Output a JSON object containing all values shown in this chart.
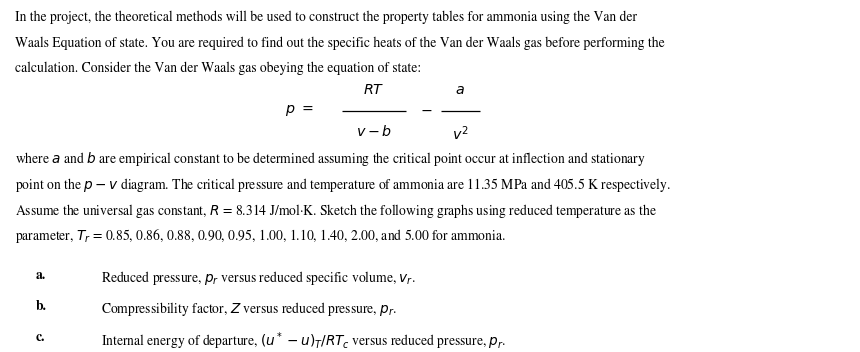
{
  "bg_color": "#ffffff",
  "text_color": "#000000",
  "font_size_body": 9.8,
  "fig_width": 8.6,
  "fig_height": 3.52,
  "paragraph1": "In the project, the theoretical methods will be used to construct the property tables for ammonia using the Van der\nWaals Equation of state. You are required to find out the specific heats of the Van der Waals gas before performing the\ncalculation. Consider the Van der Waals gas obeying the equation of state:",
  "paragraph2": "where $a$ and $b$ are empirical constant to be determined assuming the critical point occur at inflection and stationary\npoint on the $p - v$ diagram. The critical pressure and temperature of ammonia are 11.35 MPa and 405.5 K respectively.\nAssume the universal gas constant, $R$ = 8.314 J/mol·K. Sketch the following graphs using reduced temperature as the\nparameter, $T_r$ = 0.85, 0.86, 0.88, 0.90, 0.95, 1.00, 1.10, 1.40, 2.00, and 5.00 for ammonia.",
  "item_a_label": "a.",
  "item_a_text": "Reduced pressure, $p_r$ versus reduced specific volume, $v_r$.",
  "item_b_label": "b.",
  "item_b_text": "Compressibility factor, $Z$ versus reduced pressure, $p_r$.",
  "item_c_label": "c.",
  "item_c_text": "Internal energy of departure, $(u^* - u)_T/RT_c$ versus reduced pressure, $p_r$.",
  "eq_p": "$p\\ =\\ $",
  "eq_RT": "$RT$",
  "eq_vb": "$v - b$",
  "eq_a": "$a$",
  "eq_v2": "$v^2$"
}
